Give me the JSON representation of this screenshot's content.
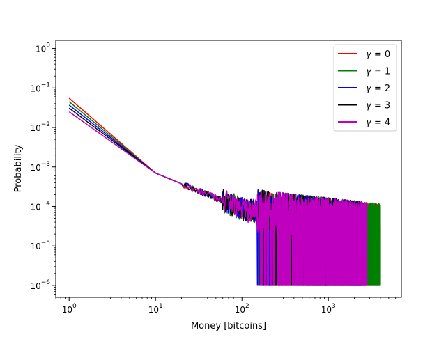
{
  "chart_data": {
    "type": "line",
    "title": "",
    "xlabel": "Money [bitcoins]",
    "ylabel": "Probability",
    "xscale": "log",
    "yscale": "log",
    "xlim": [
      0.7,
      7000
    ],
    "ylim": [
      5e-07,
      1.6
    ],
    "grid": false,
    "legend_position": "top-right",
    "x_ticks": [
      {
        "value": 1,
        "base": "10",
        "exp": "0"
      },
      {
        "value": 10,
        "base": "10",
        "exp": "1"
      },
      {
        "value": 100,
        "base": "10",
        "exp": "2"
      },
      {
        "value": 1000,
        "base": "10",
        "exp": "3"
      }
    ],
    "y_ticks": [
      {
        "value": 1e-06,
        "base": "10",
        "exp": "−6"
      },
      {
        "value": 1e-05,
        "base": "10",
        "exp": "−5"
      },
      {
        "value": 0.0001,
        "base": "10",
        "exp": "−4"
      },
      {
        "value": 0.001,
        "base": "10",
        "exp": "−3"
      },
      {
        "value": 0.01,
        "base": "10",
        "exp": "−2"
      },
      {
        "value": 0.1,
        "base": "10",
        "exp": "−1"
      },
      {
        "value": 1,
        "base": "10",
        "exp": "0"
      }
    ],
    "series": [
      {
        "name": "γ = 0",
        "symbol": "γ",
        "rest": " = 0",
        "color": "#ff0000",
        "p_at_1": 0.055,
        "x_max": 4000
      },
      {
        "name": "γ = 1",
        "symbol": "γ",
        "rest": " = 1",
        "color": "#008000",
        "p_at_1": 0.045,
        "x_max": 4000
      },
      {
        "name": "γ = 2",
        "symbol": "γ",
        "rest": " = 2",
        "color": "#0000ff",
        "p_at_1": 0.037,
        "x_max": 2700
      },
      {
        "name": "γ = 3",
        "symbol": "γ",
        "rest": " = 3",
        "color": "#000000",
        "p_at_1": 0.031,
        "x_max": 2400
      },
      {
        "name": "γ = 4",
        "symbol": "γ",
        "rest": " = 4",
        "color": "#bf00bf",
        "p_at_1": 0.025,
        "x_max": 2800
      }
    ]
  }
}
